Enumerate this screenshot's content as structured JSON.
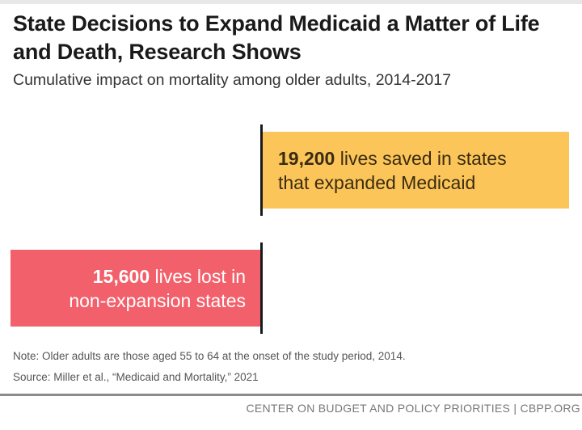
{
  "title": "State Decisions to Expand Medicaid a Matter of Life and Death, Research Shows",
  "subtitle": "Cumulative impact on mortality among older adults, 2014-2017",
  "chart_data": {
    "type": "bar",
    "orientation": "horizontal-diverging",
    "categories": [
      "states that expanded Medicaid",
      "non-expansion states"
    ],
    "values": [
      19200,
      -15600
    ],
    "colors": [
      "#fcc55a",
      "#f2606b"
    ],
    "labels": [
      {
        "value_text": "19,200",
        "text_line1": " lives saved in states",
        "text_line2": "that expanded Medicaid"
      },
      {
        "value_text": "15,600",
        "text_line1": " lives lost in",
        "text_line2": "non-expansion states"
      }
    ],
    "grid": false,
    "legend": "none"
  },
  "note": "Note: Older adults are those aged 55 to 64 at the onset of the study period, 2014.",
  "source": "Source:  Miller et al., “Medicaid and Mortality,” 2021",
  "footer": "CENTER ON BUDGET AND POLICY PRIORITIES | CBPP.ORG"
}
